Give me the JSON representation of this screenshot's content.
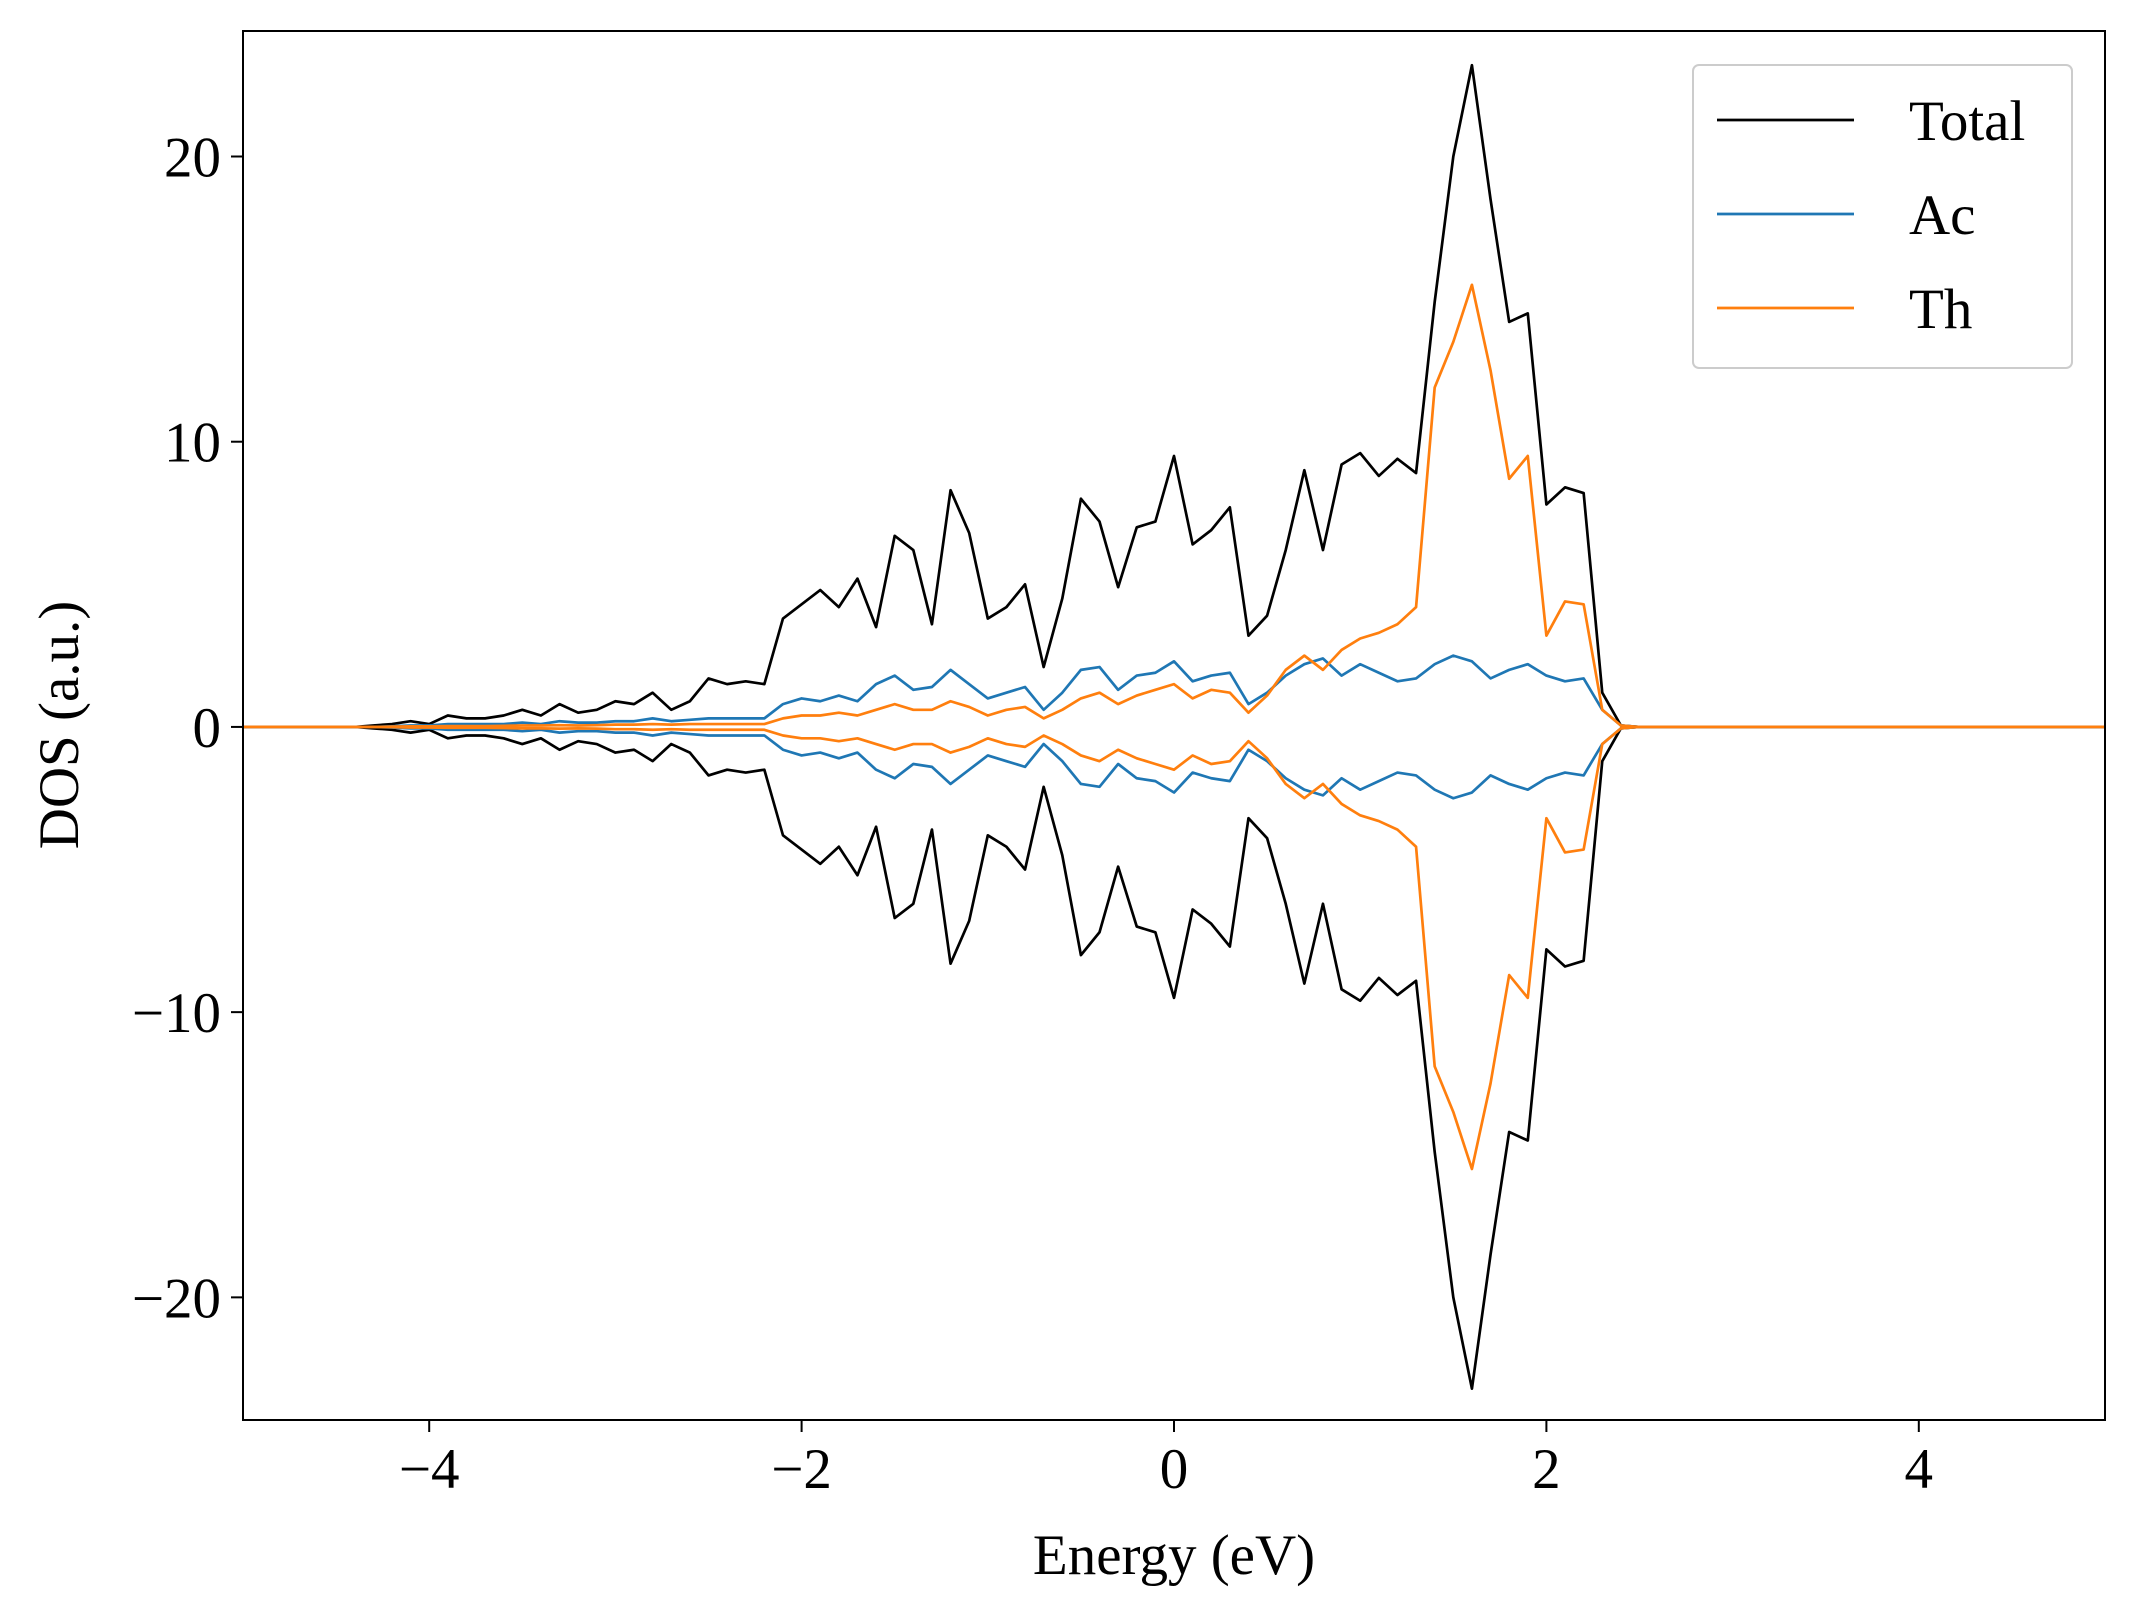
{
  "chart_data": {
    "type": "line",
    "xlabel": "Energy (eV)",
    "ylabel": "DOS (a.u.)",
    "xlim": [
      -5,
      5
    ],
    "ylim": [
      -24.3,
      24.4
    ],
    "xticks": [
      {
        "value": -4,
        "label": "−4"
      },
      {
        "value": -2,
        "label": "−2"
      },
      0,
      2,
      4
    ],
    "yticks": [
      {
        "value": -20,
        "label": "−20"
      },
      {
        "value": -10,
        "label": "−10"
      },
      0,
      10,
      20
    ],
    "legend": "upper right",
    "x": [
      -5,
      -4.4,
      -4.3,
      -4.2,
      -4.1,
      -4.0,
      -3.9,
      -3.8,
      -3.7,
      -3.6,
      -3.5,
      -3.4,
      -3.3,
      -3.2,
      -3.1,
      -3.0,
      -2.9,
      -2.8,
      -2.7,
      -2.6,
      -2.5,
      -2.4,
      -2.3,
      -2.2,
      -2.1,
      -2.0,
      -1.9,
      -1.8,
      -1.7,
      -1.6,
      -1.5,
      -1.4,
      -1.3,
      -1.2,
      -1.1,
      -1.0,
      -0.9,
      -0.8,
      -0.7,
      -0.6,
      -0.5,
      -0.4,
      -0.3,
      -0.2,
      -0.1,
      0,
      0.1,
      0.2,
      0.3,
      0.4,
      0.5,
      0.6,
      0.7,
      0.8,
      0.9,
      1.0,
      1.1,
      1.2,
      1.3,
      1.4,
      1.5,
      1.6,
      1.7,
      1.8,
      1.9,
      2.0,
      2.1,
      2.2,
      2.3,
      2.4,
      2.5,
      5
    ],
    "series": [
      {
        "name": "Total",
        "color": "#000000",
        "values": [
          0,
          0,
          0.05,
          0.1,
          0.2,
          0.1,
          0.4,
          0.3,
          0.3,
          0.4,
          0.6,
          0.4,
          0.8,
          0.5,
          0.6,
          0.9,
          0.8,
          1.2,
          0.6,
          0.9,
          1.7,
          1.5,
          1.6,
          1.5,
          3.8,
          4.3,
          4.8,
          4.2,
          5.2,
          3.5,
          6.7,
          6.2,
          3.6,
          8.3,
          6.8,
          3.8,
          4.2,
          5.0,
          2.1,
          4.5,
          8.0,
          7.2,
          4.9,
          7.0,
          7.2,
          9.5,
          6.4,
          6.9,
          7.7,
          3.2,
          3.9,
          6.2,
          9.0,
          6.2,
          9.2,
          9.6,
          8.8,
          9.4,
          8.9,
          14.9,
          20.0,
          23.2,
          18.5,
          14.2,
          14.5,
          7.8,
          8.4,
          8.2,
          1.2,
          0.05,
          0,
          0
        ],
        "values_down": [
          0,
          0,
          -0.05,
          -0.1,
          -0.2,
          -0.1,
          -0.4,
          -0.3,
          -0.3,
          -0.4,
          -0.6,
          -0.4,
          -0.8,
          -0.5,
          -0.6,
          -0.9,
          -0.8,
          -1.2,
          -0.6,
          -0.9,
          -1.7,
          -1.5,
          -1.6,
          -1.5,
          -3.8,
          -4.3,
          -4.8,
          -4.2,
          -5.2,
          -3.5,
          -6.7,
          -6.2,
          -3.6,
          -8.3,
          -6.8,
          -3.8,
          -4.2,
          -5.0,
          -2.1,
          -4.5,
          -8.0,
          -7.2,
          -4.9,
          -7.0,
          -7.2,
          -9.5,
          -6.4,
          -6.9,
          -7.7,
          -3.2,
          -3.9,
          -6.2,
          -9.0,
          -6.2,
          -9.2,
          -9.6,
          -8.8,
          -9.4,
          -8.9,
          -14.9,
          -20.0,
          -23.2,
          -18.5,
          -14.2,
          -14.5,
          -7.8,
          -8.4,
          -8.2,
          -1.2,
          -0.05,
          0,
          0
        ]
      },
      {
        "name": "Ac",
        "color": "#1f77b4",
        "values": [
          0,
          0,
          0,
          0.02,
          0.05,
          0.05,
          0.1,
          0.1,
          0.1,
          0.1,
          0.15,
          0.1,
          0.2,
          0.15,
          0.15,
          0.2,
          0.2,
          0.3,
          0.2,
          0.25,
          0.3,
          0.3,
          0.3,
          0.3,
          0.8,
          1.0,
          0.9,
          1.1,
          0.9,
          1.5,
          1.8,
          1.3,
          1.4,
          2.0,
          1.5,
          1.0,
          1.2,
          1.4,
          0.6,
          1.2,
          2.0,
          2.1,
          1.3,
          1.8,
          1.9,
          2.3,
          1.6,
          1.8,
          1.9,
          0.8,
          1.2,
          1.8,
          2.2,
          2.4,
          1.8,
          2.2,
          1.9,
          1.6,
          1.7,
          2.2,
          2.5,
          2.3,
          1.7,
          2.0,
          2.2,
          1.8,
          1.6,
          1.7,
          0.6,
          0.05,
          0,
          0
        ],
        "values_down": [
          0,
          0,
          0,
          -0.02,
          -0.05,
          -0.05,
          -0.1,
          -0.1,
          -0.1,
          -0.1,
          -0.15,
          -0.1,
          -0.2,
          -0.15,
          -0.15,
          -0.2,
          -0.2,
          -0.3,
          -0.2,
          -0.25,
          -0.3,
          -0.3,
          -0.3,
          -0.3,
          -0.8,
          -1.0,
          -0.9,
          -1.1,
          -0.9,
          -1.5,
          -1.8,
          -1.3,
          -1.4,
          -2.0,
          -1.5,
          -1.0,
          -1.2,
          -1.4,
          -0.6,
          -1.2,
          -2.0,
          -2.1,
          -1.3,
          -1.8,
          -1.9,
          -2.3,
          -1.6,
          -1.8,
          -1.9,
          -0.8,
          -1.2,
          -1.8,
          -2.2,
          -2.4,
          -1.8,
          -2.2,
          -1.9,
          -1.6,
          -1.7,
          -2.2,
          -2.5,
          -2.3,
          -1.7,
          -2.0,
          -2.2,
          -1.8,
          -1.6,
          -1.7,
          -0.6,
          -0.05,
          0,
          0
        ]
      },
      {
        "name": "Th",
        "color": "#ff7f0e",
        "values": [
          0,
          0,
          0,
          0.01,
          0.02,
          0.02,
          0.03,
          0.03,
          0.03,
          0.04,
          0.05,
          0.05,
          0.06,
          0.05,
          0.06,
          0.08,
          0.08,
          0.1,
          0.08,
          0.1,
          0.1,
          0.1,
          0.1,
          0.1,
          0.3,
          0.4,
          0.4,
          0.5,
          0.4,
          0.6,
          0.8,
          0.6,
          0.6,
          0.9,
          0.7,
          0.4,
          0.6,
          0.7,
          0.3,
          0.6,
          1.0,
          1.2,
          0.8,
          1.1,
          1.3,
          1.5,
          1.0,
          1.3,
          1.2,
          0.5,
          1.1,
          2.0,
          2.5,
          2.0,
          2.7,
          3.1,
          3.3,
          3.6,
          4.2,
          11.9,
          13.5,
          15.5,
          12.5,
          8.7,
          9.5,
          3.2,
          4.4,
          4.3,
          0.6,
          0.05,
          0,
          0
        ],
        "values_down": [
          0,
          0,
          0,
          -0.01,
          -0.02,
          -0.02,
          -0.03,
          -0.03,
          -0.03,
          -0.04,
          -0.05,
          -0.05,
          -0.06,
          -0.05,
          -0.06,
          -0.08,
          -0.08,
          -0.1,
          -0.08,
          -0.1,
          -0.1,
          -0.1,
          -0.1,
          -0.1,
          -0.3,
          -0.4,
          -0.4,
          -0.5,
          -0.4,
          -0.6,
          -0.8,
          -0.6,
          -0.6,
          -0.9,
          -0.7,
          -0.4,
          -0.6,
          -0.7,
          -0.3,
          -0.6,
          -1.0,
          -1.2,
          -0.8,
          -1.1,
          -1.3,
          -1.5,
          -1.0,
          -1.3,
          -1.2,
          -0.5,
          -1.1,
          -2.0,
          -2.5,
          -2.0,
          -2.7,
          -3.1,
          -3.3,
          -3.6,
          -4.2,
          -11.9,
          -13.5,
          -15.5,
          -12.5,
          -8.7,
          -9.5,
          -3.2,
          -4.4,
          -4.3,
          -0.6,
          -0.05,
          0,
          0
        ]
      }
    ]
  }
}
